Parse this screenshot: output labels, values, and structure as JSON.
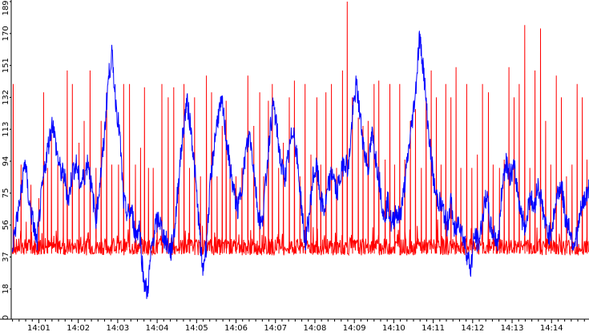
{
  "chart_data": {
    "type": "line",
    "title": "",
    "xlabel": "",
    "ylabel": "",
    "ylim": [
      0,
      189
    ],
    "y_ticks": [
      0,
      18,
      37,
      56,
      75,
      94,
      113,
      132,
      151,
      170,
      189
    ],
    "x_ticks": [
      "14:01",
      "14:02",
      "14:03",
      "14:04",
      "14:05",
      "14:06",
      "14:07",
      "14:08",
      "14:09",
      "14:10",
      "14:11",
      "14:12",
      "14:13",
      "14:14"
    ],
    "xlim_minutes": [
      0.3,
      14.95
    ],
    "grid": false,
    "legend": "none",
    "series": [
      {
        "color": "#0000ff",
        "points": [
          [
            0.3,
            40
          ],
          [
            0.45,
            60
          ],
          [
            0.55,
            75
          ],
          [
            0.65,
            95
          ],
          [
            0.75,
            70
          ],
          [
            0.85,
            58
          ],
          [
            0.95,
            45
          ],
          [
            1.05,
            70
          ],
          [
            1.15,
            90
          ],
          [
            1.25,
            105
          ],
          [
            1.35,
            118
          ],
          [
            1.45,
            100
          ],
          [
            1.55,
            88
          ],
          [
            1.65,
            85
          ],
          [
            1.75,
            70
          ],
          [
            1.85,
            88
          ],
          [
            1.95,
            92
          ],
          [
            2.05,
            80
          ],
          [
            2.15,
            85
          ],
          [
            2.25,
            95
          ],
          [
            2.35,
            75
          ],
          [
            2.45,
            60
          ],
          [
            2.55,
            82
          ],
          [
            2.65,
            105
          ],
          [
            2.75,
            140
          ],
          [
            2.85,
            158
          ],
          [
            2.95,
            130
          ],
          [
            3.05,
            110
          ],
          [
            3.15,
            70
          ],
          [
            3.25,
            62
          ],
          [
            3.35,
            65
          ],
          [
            3.45,
            50
          ],
          [
            3.55,
            55
          ],
          [
            3.65,
            25
          ],
          [
            3.75,
            15
          ],
          [
            3.85,
            40
          ],
          [
            3.95,
            55
          ],
          [
            4.05,
            60
          ],
          [
            4.15,
            50
          ],
          [
            4.25,
            45
          ],
          [
            4.35,
            40
          ],
          [
            4.45,
            55
          ],
          [
            4.55,
            85
          ],
          [
            4.65,
            110
          ],
          [
            4.75,
            130
          ],
          [
            4.85,
            115
          ],
          [
            4.95,
            90
          ],
          [
            5.05,
            60
          ],
          [
            5.15,
            28
          ],
          [
            5.25,
            45
          ],
          [
            5.35,
            80
          ],
          [
            5.45,
            105
          ],
          [
            5.55,
            122
          ],
          [
            5.65,
            128
          ],
          [
            5.75,
            108
          ],
          [
            5.85,
            90
          ],
          [
            5.95,
            75
          ],
          [
            6.05,
            65
          ],
          [
            6.15,
            80
          ],
          [
            6.25,
            100
          ],
          [
            6.35,
            110
          ],
          [
            6.45,
            90
          ],
          [
            6.55,
            65
          ],
          [
            6.65,
            55
          ],
          [
            6.75,
            80
          ],
          [
            6.85,
            110
          ],
          [
            6.95,
            128
          ],
          [
            7.05,
            110
          ],
          [
            7.15,
            90
          ],
          [
            7.25,
            85
          ],
          [
            7.35,
            100
          ],
          [
            7.45,
            115
          ],
          [
            7.55,
            95
          ],
          [
            7.65,
            70
          ],
          [
            7.75,
            45
          ],
          [
            7.85,
            60
          ],
          [
            7.95,
            85
          ],
          [
            8.05,
            90
          ],
          [
            8.15,
            70
          ],
          [
            8.25,
            65
          ],
          [
            8.35,
            80
          ],
          [
            8.45,
            88
          ],
          [
            8.55,
            75
          ],
          [
            8.65,
            85
          ],
          [
            8.75,
            95
          ],
          [
            8.85,
            90
          ],
          [
            8.95,
            120
          ],
          [
            9.05,
            140
          ],
          [
            9.15,
            120
          ],
          [
            9.25,
            100
          ],
          [
            9.35,
            90
          ],
          [
            9.45,
            110
          ],
          [
            9.55,
            95
          ],
          [
            9.65,
            80
          ],
          [
            9.75,
            60
          ],
          [
            9.85,
            70
          ],
          [
            9.95,
            55
          ],
          [
            10.05,
            65
          ],
          [
            10.15,
            60
          ],
          [
            10.25,
            75
          ],
          [
            10.35,
            95
          ],
          [
            10.45,
            115
          ],
          [
            10.55,
            135
          ],
          [
            10.65,
            168
          ],
          [
            10.75,
            150
          ],
          [
            10.85,
            120
          ],
          [
            10.95,
            95
          ],
          [
            11.05,
            75
          ],
          [
            11.15,
            70
          ],
          [
            11.25,
            65
          ],
          [
            11.35,
            55
          ],
          [
            11.45,
            70
          ],
          [
            11.55,
            50
          ],
          [
            11.65,
            60
          ],
          [
            11.75,
            50
          ],
          [
            11.85,
            40
          ],
          [
            11.95,
            30
          ],
          [
            12.05,
            50
          ],
          [
            12.15,
            45
          ],
          [
            12.25,
            60
          ],
          [
            12.35,
            75
          ],
          [
            12.45,
            55
          ],
          [
            12.55,
            50
          ],
          [
            12.65,
            45
          ],
          [
            12.75,
            80
          ],
          [
            12.85,
            95
          ],
          [
            12.95,
            85
          ],
          [
            13.05,
            90
          ],
          [
            13.15,
            75
          ],
          [
            13.25,
            60
          ],
          [
            13.35,
            55
          ],
          [
            13.45,
            75
          ],
          [
            13.55,
            65
          ],
          [
            13.65,
            80
          ],
          [
            13.75,
            70
          ],
          [
            13.85,
            55
          ],
          [
            13.95,
            50
          ],
          [
            14.05,
            60
          ],
          [
            14.15,
            75
          ],
          [
            14.25,
            80
          ],
          [
            14.35,
            60
          ],
          [
            14.45,
            55
          ],
          [
            14.55,
            45
          ],
          [
            14.65,
            50
          ],
          [
            14.75,
            65
          ],
          [
            14.85,
            72
          ],
          [
            14.95,
            78
          ]
        ]
      },
      {
        "color": "#ff0000",
        "peaks": [
          [
            0.35,
            140
          ],
          [
            0.55,
            92
          ],
          [
            0.68,
            58
          ],
          [
            0.8,
            80
          ],
          [
            1.0,
            72
          ],
          [
            1.12,
            135
          ],
          [
            1.22,
            90
          ],
          [
            1.32,
            110
          ],
          [
            1.48,
            92
          ],
          [
            1.62,
            85
          ],
          [
            1.72,
            148
          ],
          [
            1.85,
            140
          ],
          [
            2.02,
            105
          ],
          [
            2.15,
            118
          ],
          [
            2.3,
            148
          ],
          [
            2.45,
            90
          ],
          [
            2.58,
            118
          ],
          [
            2.72,
            135
          ],
          [
            2.85,
            92
          ],
          [
            3.02,
            92
          ],
          [
            3.15,
            140
          ],
          [
            3.3,
            140
          ],
          [
            3.45,
            92
          ],
          [
            3.58,
            102
          ],
          [
            3.68,
            138
          ],
          [
            3.78,
            90
          ],
          [
            3.9,
            90
          ],
          [
            4.0,
            62
          ],
          [
            4.12,
            140
          ],
          [
            4.28,
            132
          ],
          [
            4.42,
            138
          ],
          [
            4.55,
            82
          ],
          [
            4.68,
            140
          ],
          [
            4.82,
            90
          ],
          [
            4.95,
            132
          ],
          [
            5.1,
            85
          ],
          [
            5.25,
            145
          ],
          [
            5.38,
            135
          ],
          [
            5.52,
            85
          ],
          [
            5.65,
            115
          ],
          [
            5.75,
            130
          ],
          [
            5.85,
            92
          ],
          [
            6.0,
            85
          ],
          [
            6.15,
            90
          ],
          [
            6.3,
            145
          ],
          [
            6.45,
            115
          ],
          [
            6.6,
            135
          ],
          [
            6.7,
            85
          ],
          [
            6.82,
            130
          ],
          [
            6.92,
            140
          ],
          [
            7.08,
            90
          ],
          [
            7.2,
            105
          ],
          [
            7.35,
            132
          ],
          [
            7.48,
            142
          ],
          [
            7.62,
            85
          ],
          [
            7.75,
            140
          ],
          [
            7.9,
            98
          ],
          [
            8.05,
            132
          ],
          [
            8.15,
            92
          ],
          [
            8.28,
            135
          ],
          [
            8.42,
            140
          ],
          [
            8.55,
            90
          ],
          [
            8.7,
            148
          ],
          [
            8.82,
            189
          ],
          [
            8.95,
            132
          ],
          [
            9.1,
            120
          ],
          [
            9.22,
            115
          ],
          [
            9.35,
            118
          ],
          [
            9.5,
            140
          ],
          [
            9.62,
            142
          ],
          [
            9.78,
            95
          ],
          [
            9.9,
            140
          ],
          [
            10.02,
            92
          ],
          [
            10.15,
            140
          ],
          [
            10.28,
            95
          ],
          [
            10.42,
            118
          ],
          [
            10.55,
            125
          ],
          [
            10.7,
            90
          ],
          [
            10.82,
            132
          ],
          [
            10.95,
            148
          ],
          [
            11.08,
            132
          ],
          [
            11.2,
            92
          ],
          [
            11.32,
            140
          ],
          [
            11.45,
            132
          ],
          [
            11.58,
            150
          ],
          [
            11.7,
            90
          ],
          [
            11.85,
            140
          ],
          [
            11.98,
            90
          ],
          [
            12.12,
            98
          ],
          [
            12.25,
            140
          ],
          [
            12.4,
            135
          ],
          [
            12.52,
            92
          ],
          [
            12.68,
            90
          ],
          [
            12.8,
            95
          ],
          [
            12.92,
            150
          ],
          [
            13.05,
            132
          ],
          [
            13.18,
            140
          ],
          [
            13.32,
            175
          ],
          [
            13.45,
            90
          ],
          [
            13.58,
            148
          ],
          [
            13.72,
            173
          ],
          [
            13.85,
            118
          ],
          [
            13.98,
            92
          ],
          [
            14.12,
            145
          ],
          [
            14.25,
            132
          ],
          [
            14.38,
            85
          ],
          [
            14.52,
            92
          ],
          [
            14.65,
            140
          ],
          [
            14.78,
            132
          ],
          [
            14.9,
            95
          ]
        ],
        "baseline": 43
      }
    ]
  }
}
